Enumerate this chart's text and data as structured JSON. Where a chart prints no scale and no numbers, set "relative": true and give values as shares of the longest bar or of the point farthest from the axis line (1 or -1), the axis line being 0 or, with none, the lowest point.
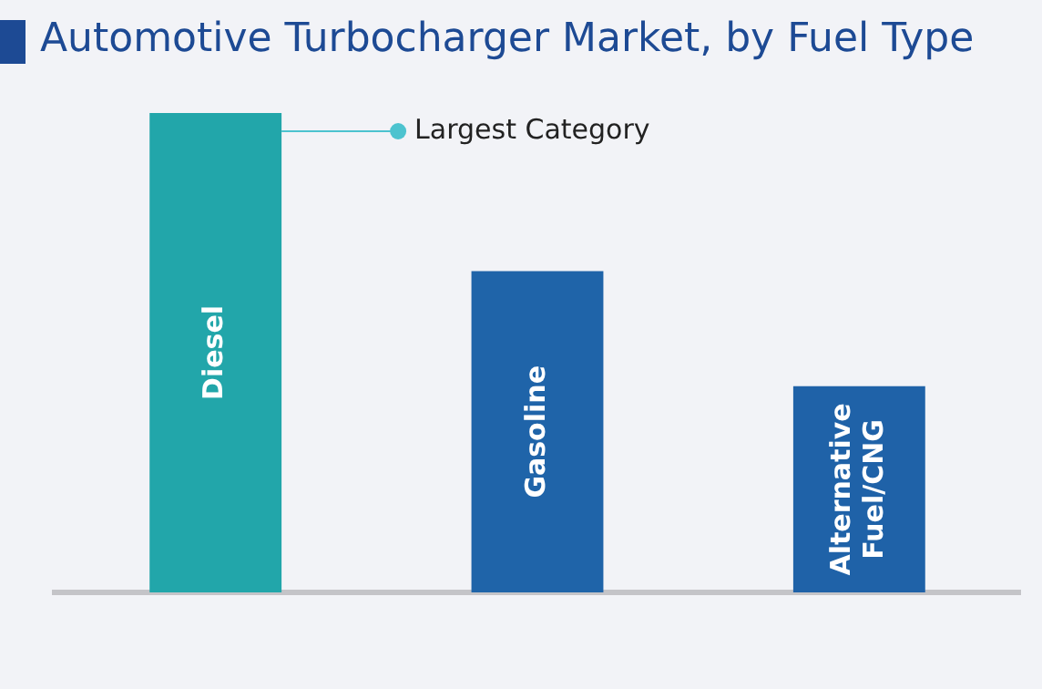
{
  "chart_data": {
    "type": "bar",
    "title": "Automotive Turbocharger Market, by Fuel Type",
    "categories": [
      "Diesel",
      "Gasoline",
      "Alternative Fuel/CNG"
    ],
    "values": [
      1,
      0.67,
      0.43
    ],
    "colors": [
      "#22a6aa",
      "#1f64a9",
      "#1f62a8"
    ],
    "relative": true,
    "annotations": [
      "Largest Category"
    ]
  }
}
